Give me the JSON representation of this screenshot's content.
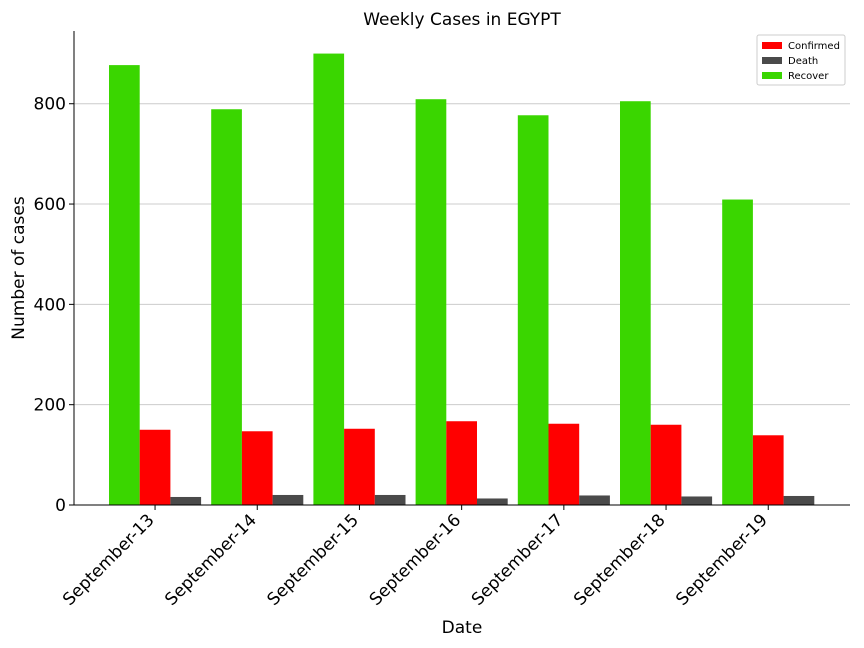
{
  "chart_data": {
    "type": "bar",
    "title": "Weekly Cases in EGYPT",
    "xlabel": "Date",
    "ylabel": "Number of cases",
    "categories": [
      "September-13",
      "September-14",
      "September-15",
      "September-16",
      "September-17",
      "September-18",
      "September-19"
    ],
    "series": [
      {
        "name": "Recover",
        "color": "#3ad600",
        "values": [
          877,
          789,
          900,
          809,
          777,
          805,
          609
        ]
      },
      {
        "name": "Confirmed",
        "color": "#ff0000",
        "values": [
          150,
          147,
          152,
          167,
          162,
          160,
          139
        ]
      },
      {
        "name": "Death",
        "color": "#4a4a4a",
        "values": [
          16,
          20,
          20,
          13,
          19,
          17,
          18
        ]
      }
    ],
    "legend_order": [
      "Confirmed",
      "Death",
      "Recover"
    ],
    "yticks": [
      0,
      200,
      400,
      600,
      800
    ],
    "ylim": [
      0,
      945
    ],
    "grid": "horizontal",
    "legend_position": "top-right"
  }
}
